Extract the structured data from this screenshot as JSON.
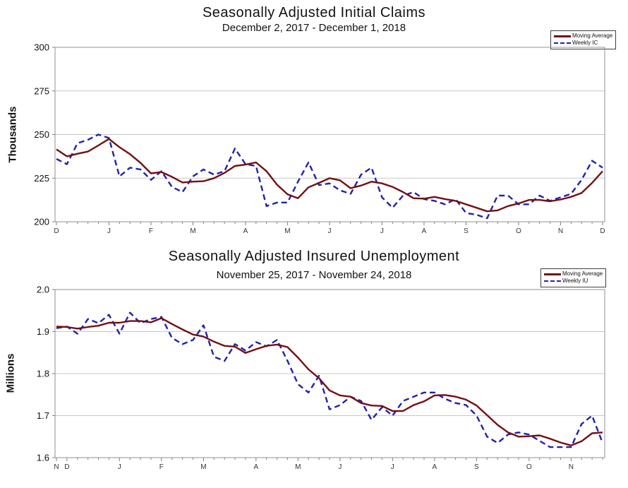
{
  "colors": {
    "moving_average": "#721014",
    "weekly": "#2222A8",
    "grid": "#c8c8c8",
    "plot_border": "#909090",
    "tick": "#808080"
  },
  "chart_data": [
    {
      "type": "line",
      "title": "Seasonally Adjusted Initial Claims",
      "subtitle": "December 2, 2017 - December 1, 2018",
      "ylabel": "Thousands",
      "xlabel": "",
      "ylim": [
        200,
        300
      ],
      "y_ticks": [
        200,
        225,
        250,
        275,
        300
      ],
      "y_tick_labels": [
        "200",
        "225",
        "250",
        "275",
        "300"
      ],
      "grid": "horizontal",
      "legend_position": "top-right",
      "x_unit": "week",
      "n_weeks": 53,
      "month_tick_indices": [
        0,
        5,
        9,
        13,
        18,
        22,
        26,
        31,
        35,
        39,
        44,
        48,
        52
      ],
      "month_tick_labels": [
        "D",
        "J",
        "F",
        "M",
        "A",
        "M",
        "J",
        "J",
        "A",
        "S",
        "O",
        "N",
        "D"
      ],
      "series": [
        {
          "name": "Moving Average",
          "style": "solid",
          "values": [
            241.5,
            237.5,
            239,
            240.25,
            243.75,
            247.5,
            242.75,
            238.75,
            233.75,
            227.75,
            228.5,
            225.75,
            222.5,
            223,
            223.25,
            225,
            228,
            232,
            232.75,
            234,
            229,
            221.25,
            215.75,
            213.5,
            219.75,
            222.25,
            225,
            223.75,
            219.25,
            220.75,
            223,
            222,
            220,
            217,
            213.5,
            213.25,
            214.25,
            213,
            212,
            210,
            208,
            206,
            206.5,
            209,
            210.5,
            212.5,
            212.5,
            211.75,
            212.75,
            214.25,
            216.5,
            222.25,
            229
          ]
        },
        {
          "name": "Weekly IC",
          "style": "dashed",
          "values": [
            236,
            233,
            245,
            247,
            250,
            248,
            226,
            231,
            230,
            224,
            229,
            220,
            217,
            226,
            230,
            227,
            229,
            242,
            233,
            232,
            209,
            211,
            211,
            223,
            234,
            221,
            222,
            218,
            216,
            227,
            231,
            214,
            208,
            215,
            217,
            213,
            212,
            210,
            213,
            205,
            204,
            202,
            215,
            215,
            210,
            210,
            215,
            212,
            214,
            216,
            224,
            235,
            231
          ]
        }
      ]
    },
    {
      "type": "line",
      "title": "Seasonally Adjusted Insured Unemployment",
      "subtitle": "November 25, 2017 - November 24, 2018",
      "ylabel": "Millions",
      "xlabel": "",
      "ylim": [
        1.6,
        2.0
      ],
      "y_ticks": [
        1.6,
        1.7,
        1.8,
        1.9,
        2.0
      ],
      "y_tick_labels": [
        "1.6",
        "1.7",
        "1.8",
        "1.9",
        "2.0"
      ],
      "grid": "horizontal",
      "legend_position": "top-right",
      "x_unit": "week",
      "n_weeks": 53,
      "month_tick_indices": [
        0,
        1,
        6,
        10,
        14,
        19,
        23,
        27,
        32,
        36,
        40,
        45,
        49
      ],
      "month_tick_labels": [
        "N",
        "D",
        "J",
        "F",
        "M",
        "A",
        "M",
        "J",
        "J",
        "A",
        "S",
        "O",
        "N"
      ],
      "series": [
        {
          "name": "Moving Average",
          "style": "solid",
          "values": [
            1.912,
            1.911,
            1.907,
            1.911,
            1.914,
            1.921,
            1.921,
            1.925,
            1.925,
            1.922,
            1.932,
            1.918,
            1.905,
            1.893,
            1.888,
            1.876,
            1.866,
            1.864,
            1.849,
            1.858,
            1.866,
            1.869,
            1.863,
            1.838,
            1.81,
            1.789,
            1.76,
            1.748,
            1.745,
            1.73,
            1.724,
            1.723,
            1.711,
            1.711,
            1.725,
            1.734,
            1.748,
            1.749,
            1.745,
            1.738,
            1.724,
            1.701,
            1.678,
            1.66,
            1.65,
            1.651,
            1.653,
            1.645,
            1.636,
            1.629,
            1.639,
            1.658,
            1.66
          ]
        },
        {
          "name": "Weekly IU",
          "style": "dashed",
          "values": [
            1.908,
            1.912,
            1.895,
            1.93,
            1.92,
            1.94,
            1.895,
            1.945,
            1.92,
            1.93,
            1.935,
            1.885,
            1.87,
            1.88,
            1.915,
            1.84,
            1.83,
            1.87,
            1.855,
            1.875,
            1.865,
            1.88,
            1.83,
            1.775,
            1.755,
            1.795,
            1.715,
            1.725,
            1.745,
            1.735,
            1.69,
            1.72,
            1.7,
            1.735,
            1.745,
            1.755,
            1.755,
            1.74,
            1.73,
            1.725,
            1.7,
            1.65,
            1.635,
            1.655,
            1.66,
            1.655,
            1.64,
            1.625,
            1.625,
            1.625,
            1.68,
            1.7,
            1.635
          ]
        }
      ]
    }
  ]
}
